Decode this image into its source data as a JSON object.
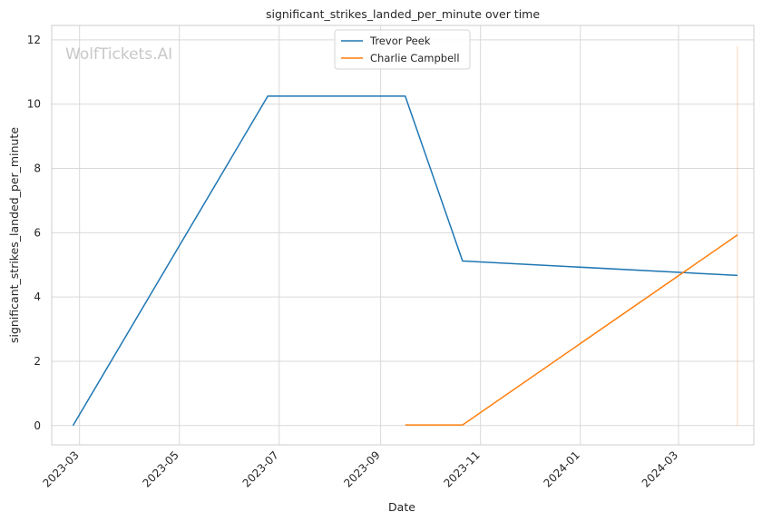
{
  "chart_data": {
    "type": "line",
    "title": "significant_strikes_landed_per_minute over time",
    "xlabel": "Date",
    "ylabel": "significant_strikes_landed_per_minute",
    "watermark": "WolfTickets.AI",
    "x_range": [
      "2023-02-12",
      "2024-04-16"
    ],
    "ylim": [
      -0.6,
      12.45
    ],
    "y_ticks": [
      0,
      2,
      4,
      6,
      8,
      10,
      12
    ],
    "x_ticks": [
      "2023-03",
      "2023-05",
      "2023-07",
      "2023-09",
      "2023-11",
      "2024-01",
      "2024-03"
    ],
    "grid": true,
    "legend_position": "top-center",
    "series": [
      {
        "name": "Trevor Peek",
        "color": "#1f77b4",
        "points": [
          {
            "x": "2023-02-25",
            "y": 0.0
          },
          {
            "x": "2023-06-24",
            "y": 10.25
          },
          {
            "x": "2023-09-16",
            "y": 10.25
          },
          {
            "x": "2023-10-21",
            "y": 5.12
          },
          {
            "x": "2024-04-06",
            "y": 4.67
          }
        ]
      },
      {
        "name": "Charlie Campbell",
        "color": "#ff7f0e",
        "points": [
          {
            "x": "2023-09-16",
            "y": 0.02
          },
          {
            "x": "2023-10-21",
            "y": 0.02
          },
          {
            "x": "2024-04-06",
            "y": 5.93
          }
        ]
      }
    ],
    "reference_line": {
      "x": "2024-04-06",
      "y_range": [
        0,
        11.8
      ],
      "color": "#ff7f0e"
    }
  }
}
